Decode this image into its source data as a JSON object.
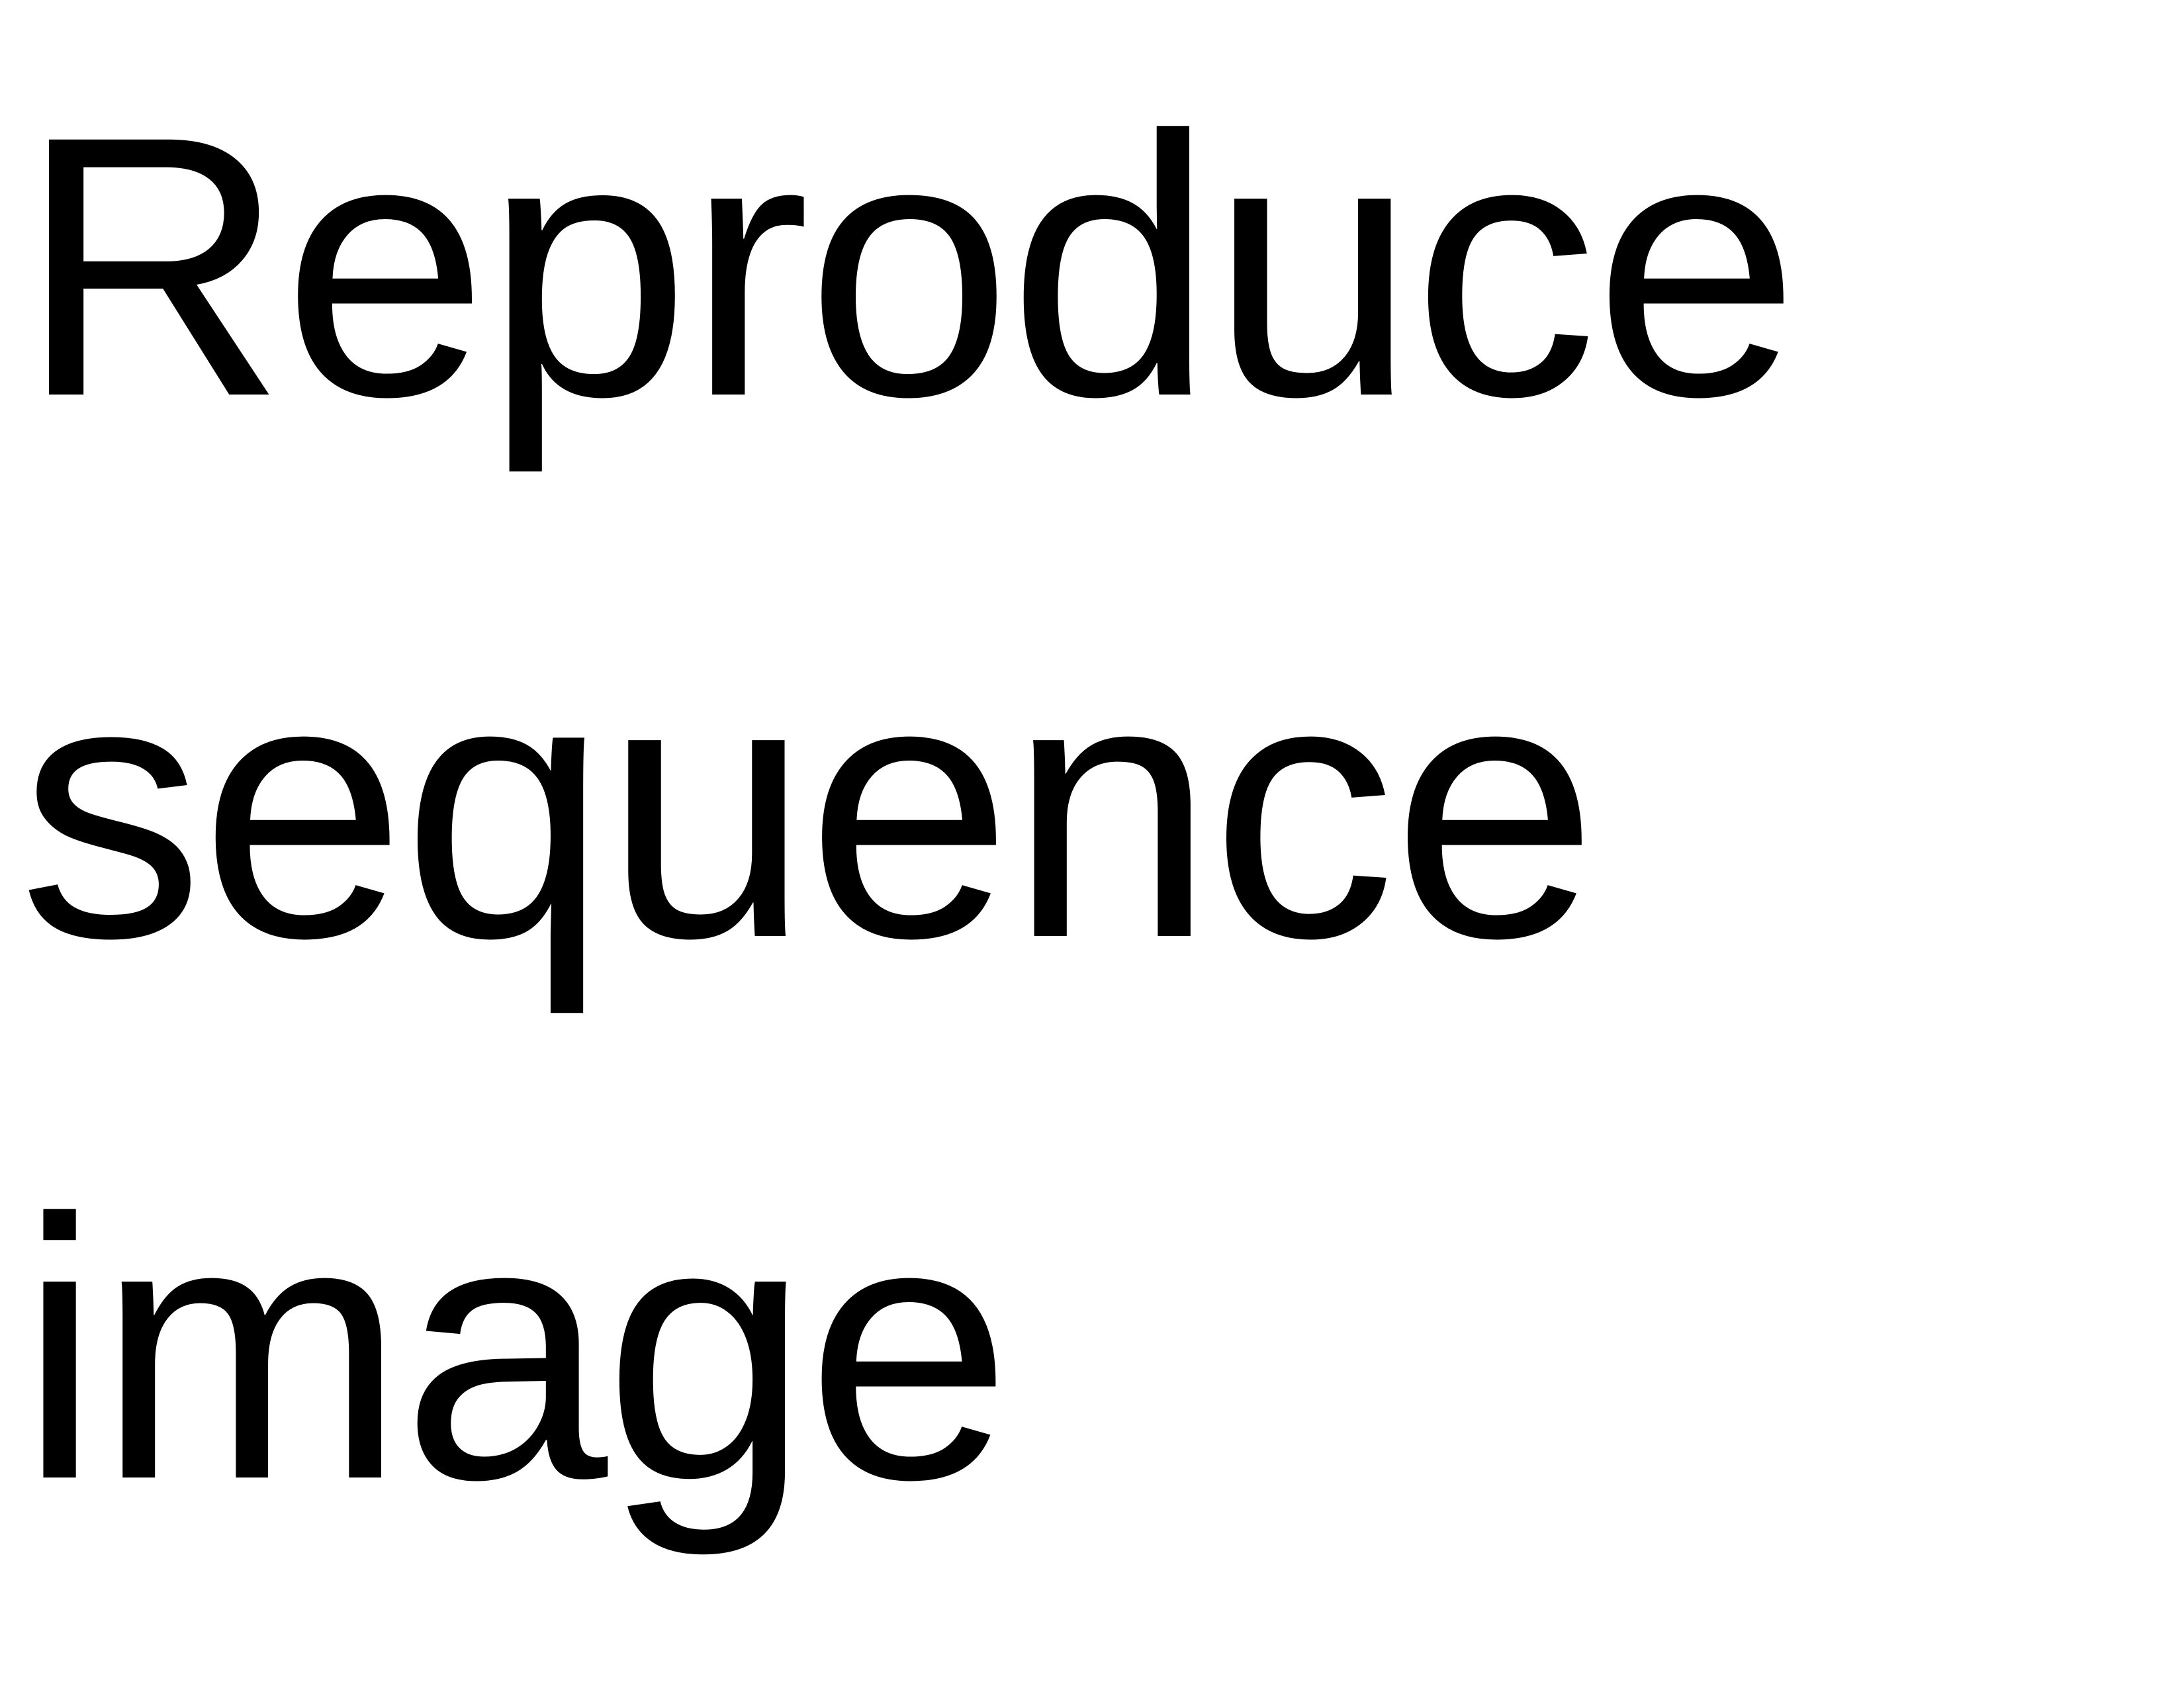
{
  "lines": [
    "Reproduce",
    "sequence",
    "image"
  ]
}
